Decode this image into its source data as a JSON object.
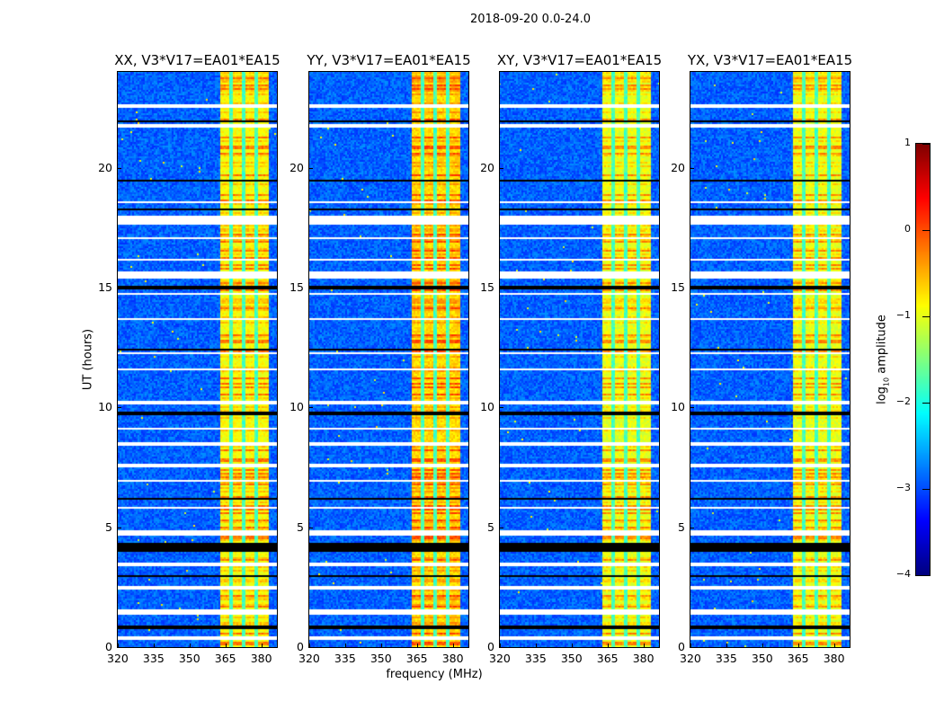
{
  "chart_data": {
    "type": "heatmap",
    "title": "2018-09-20 0.0-24.0",
    "xlabel": "frequency (MHz)",
    "ylabel": "UT (hours)",
    "xlim": [
      320,
      386.5
    ],
    "ylim": [
      0,
      24
    ],
    "xticks": [
      "320",
      "335",
      "350",
      "365",
      "380"
    ],
    "xtick_values": [
      320,
      335,
      350,
      365,
      380
    ],
    "yticks": [
      "0",
      "5",
      "10",
      "15",
      "20"
    ],
    "ytick_values": [
      0,
      5,
      10,
      15,
      20
    ],
    "panels": [
      {
        "title": "XX, V3*V17=EA01*EA15",
        "band_level": -0.9
      },
      {
        "title": "YY, V3*V17=EA01*EA15",
        "band_level": -0.7
      },
      {
        "title": "XY, V3*V17=EA01*EA15",
        "band_level": -1.0
      },
      {
        "title": "YX, V3*V17=EA01*EA15",
        "band_level": -1.0
      }
    ],
    "background_level": -2.9,
    "rfi_band_mhz": [
      362.3,
      382.6
    ],
    "rfi_band_gaps_mhz": [
      367.2,
      372.5,
      377.8
    ],
    "flagged_white_hours": [
      [
        0.3,
        0.5
      ],
      [
        1.4,
        1.6
      ],
      [
        2.4,
        2.6
      ],
      [
        3.45,
        3.55
      ],
      [
        4.7,
        4.9
      ],
      [
        5.8,
        5.9
      ],
      [
        6.9,
        7.0
      ],
      [
        7.55,
        7.65
      ],
      [
        8.4,
        8.6
      ],
      [
        9.1,
        9.15
      ],
      [
        10.2,
        10.3
      ],
      [
        11.6,
        11.65
      ],
      [
        12.25,
        12.35
      ],
      [
        13.7,
        13.75
      ],
      [
        14.75,
        14.85
      ],
      [
        15.4,
        15.7
      ],
      [
        16.2,
        16.25
      ],
      [
        17.1,
        17.15
      ],
      [
        17.7,
        18.0
      ],
      [
        18.6,
        18.65
      ],
      [
        21.75,
        21.85
      ],
      [
        22.55,
        22.7
      ]
    ],
    "flagged_black_hours": [
      [
        0.8,
        0.9
      ],
      [
        1.9,
        1.95
      ],
      [
        2.95,
        3.0
      ],
      [
        4.0,
        4.4
      ],
      [
        6.15,
        6.25
      ],
      [
        7.05,
        7.1
      ],
      [
        9.75,
        9.85
      ],
      [
        12.4,
        12.45
      ],
      [
        15.0,
        15.1
      ],
      [
        18.3,
        18.35
      ],
      [
        19.45,
        19.55
      ],
      [
        21.95,
        22.0
      ]
    ],
    "colorbar": {
      "label": "log",
      "label_sub": "10",
      "label_rest": " amplitude",
      "range": [
        -4,
        1
      ],
      "ticks": [
        "1",
        "0",
        "−1",
        "−2",
        "−3",
        "−4"
      ],
      "tick_values": [
        1,
        0,
        -1,
        -2,
        -3,
        -4
      ],
      "colormap": "jet"
    }
  }
}
